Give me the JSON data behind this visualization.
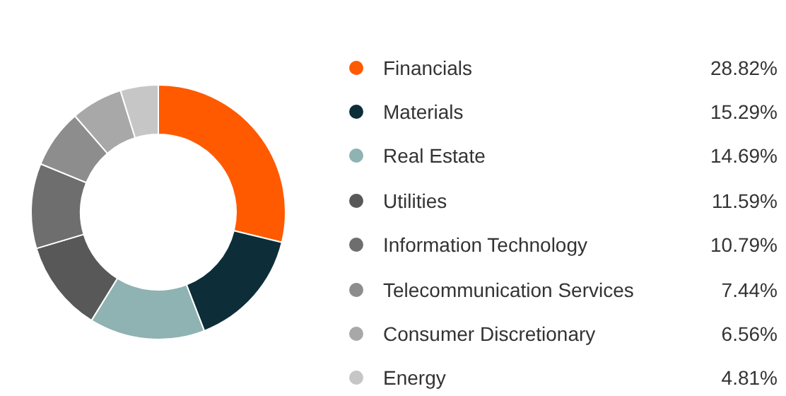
{
  "chart_data": {
    "type": "donut",
    "categories": [
      "Financials",
      "Materials",
      "Real Estate",
      "Utilities",
      "Information Technology",
      "Telecommunication Services",
      "Consumer Discretionary",
      "Energy"
    ],
    "values": [
      28.82,
      15.29,
      14.69,
      11.59,
      10.79,
      7.44,
      6.56,
      4.81
    ],
    "value_labels": [
      "28.82%",
      "15.29%",
      "14.69%",
      "11.59%",
      "10.79%",
      "7.44%",
      "6.56%",
      "4.81%"
    ],
    "colors": [
      "#ff5a00",
      "#0d2e38",
      "#8fb2b2",
      "#585858",
      "#6e6e6e",
      "#8d8d8d",
      "#a8a8a8",
      "#c6c6c6"
    ],
    "legend": "right"
  }
}
